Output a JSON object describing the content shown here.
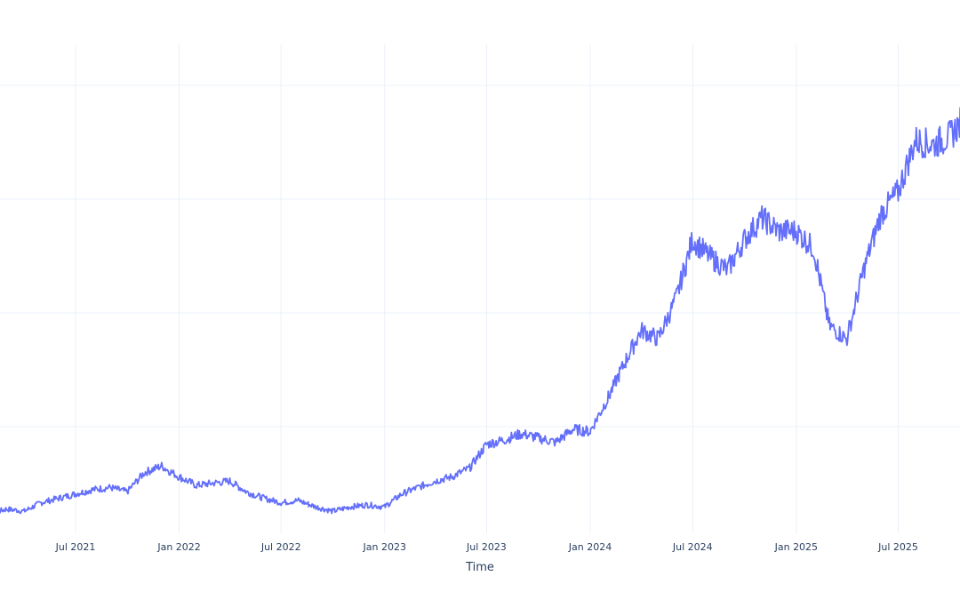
{
  "chart_data": {
    "type": "line",
    "xlabel": "Time",
    "ylabel": "",
    "x_range": [
      "2021-01-01",
      "2025-12-31"
    ],
    "y_range": [
      0,
      1
    ],
    "grid": true,
    "y_tick_count": 4,
    "x_ticks": [
      {
        "date": "2021-07-01",
        "label": "Jul 2021"
      },
      {
        "date": "2022-01-01",
        "label": "Jan 2022"
      },
      {
        "date": "2022-07-01",
        "label": "Jul 2022"
      },
      {
        "date": "2023-01-01",
        "label": "Jan 2023"
      },
      {
        "date": "2023-07-01",
        "label": "Jul 2023"
      },
      {
        "date": "2024-01-01",
        "label": "Jan 2024"
      },
      {
        "date": "2024-07-01",
        "label": "Jul 2024"
      },
      {
        "date": "2025-01-01",
        "label": "Jan 2025"
      },
      {
        "date": "2025-07-01",
        "label": "Jul 2025"
      }
    ],
    "series": [
      {
        "color": "#636efa",
        "x": [
          "2021-01-01",
          "2021-02-01",
          "2021-03-01",
          "2021-04-01",
          "2021-05-01",
          "2021-06-01",
          "2021-07-01",
          "2021-08-01",
          "2021-09-01",
          "2021-10-01",
          "2021-11-01",
          "2021-12-01",
          "2022-01-01",
          "2022-02-01",
          "2022-03-01",
          "2022-04-01",
          "2022-05-01",
          "2022-06-01",
          "2022-07-01",
          "2022-08-01",
          "2022-09-01",
          "2022-10-01",
          "2022-11-01",
          "2022-12-01",
          "2023-01-01",
          "2023-02-01",
          "2023-03-01",
          "2023-04-01",
          "2023-05-01",
          "2023-06-01",
          "2023-07-01",
          "2023-08-01",
          "2023-09-01",
          "2023-10-01",
          "2023-11-01",
          "2023-12-01",
          "2024-01-01",
          "2024-02-01",
          "2024-03-01",
          "2024-04-01",
          "2024-05-01",
          "2024-06-01",
          "2024-07-01",
          "2024-08-01",
          "2024-09-01",
          "2024-10-01",
          "2024-11-01",
          "2024-12-01",
          "2025-01-01",
          "2025-02-01",
          "2025-03-01",
          "2025-04-01",
          "2025-05-01",
          "2025-06-01",
          "2025-07-01",
          "2025-08-01",
          "2025-09-01",
          "2025-10-01",
          "2025-11-01",
          "2025-12-01"
        ],
        "y": [
          0.02,
          0.005,
          0.015,
          0.01,
          0.03,
          0.04,
          0.05,
          0.06,
          0.065,
          0.055,
          0.1,
          0.115,
          0.09,
          0.07,
          0.075,
          0.08,
          0.055,
          0.04,
          0.03,
          0.035,
          0.02,
          0.01,
          0.02,
          0.025,
          0.02,
          0.05,
          0.065,
          0.08,
          0.09,
          0.11,
          0.165,
          0.175,
          0.19,
          0.18,
          0.17,
          0.2,
          0.195,
          0.27,
          0.35,
          0.43,
          0.41,
          0.5,
          0.64,
          0.6,
          0.57,
          0.64,
          0.69,
          0.66,
          0.66,
          0.62,
          0.44,
          0.41,
          0.57,
          0.7,
          0.75,
          0.87,
          0.86,
          0.88,
          0.93,
          0.89
        ]
      }
    ]
  }
}
